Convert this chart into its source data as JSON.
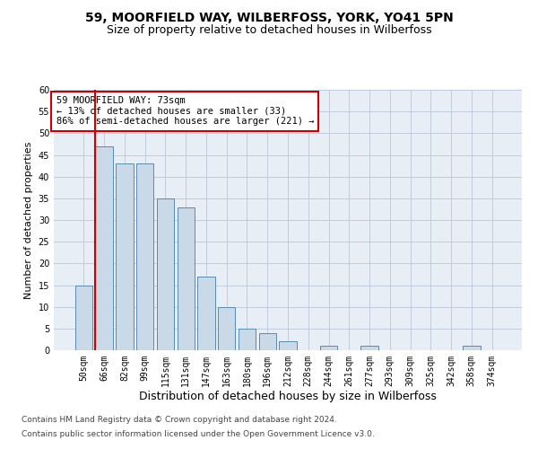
{
  "title1": "59, MOORFIELD WAY, WILBERFOSS, YORK, YO41 5PN",
  "title2": "Size of property relative to detached houses in Wilberfoss",
  "xlabel": "Distribution of detached houses by size in Wilberfoss",
  "ylabel": "Number of detached properties",
  "categories": [
    "50sqm",
    "66sqm",
    "82sqm",
    "99sqm",
    "115sqm",
    "131sqm",
    "147sqm",
    "163sqm",
    "180sqm",
    "196sqm",
    "212sqm",
    "228sqm",
    "244sqm",
    "261sqm",
    "277sqm",
    "293sqm",
    "309sqm",
    "325sqm",
    "342sqm",
    "358sqm",
    "374sqm"
  ],
  "values": [
    15,
    47,
    43,
    43,
    35,
    33,
    17,
    10,
    5,
    4,
    2,
    0,
    1,
    0,
    1,
    0,
    0,
    0,
    0,
    1,
    0
  ],
  "bar_color": "#c9d9e8",
  "bar_edge_color": "#5a8ab0",
  "vline_x": 0.575,
  "vline_color": "#cc0000",
  "annotation_text": "59 MOORFIELD WAY: 73sqm\n← 13% of detached houses are smaller (33)\n86% of semi-detached houses are larger (221) →",
  "annotation_box_color": "#ffffff",
  "annotation_box_edge_color": "#cc0000",
  "ylim": [
    0,
    60
  ],
  "yticks": [
    0,
    5,
    10,
    15,
    20,
    25,
    30,
    35,
    40,
    45,
    50,
    55,
    60
  ],
  "grid_color": "#c0ccdd",
  "background_color": "#e8eef5",
  "footer1": "Contains HM Land Registry data © Crown copyright and database right 2024.",
  "footer2": "Contains public sector information licensed under the Open Government Licence v3.0.",
  "title1_fontsize": 10,
  "title2_fontsize": 9,
  "xlabel_fontsize": 9,
  "ylabel_fontsize": 8,
  "tick_fontsize": 7,
  "footer_fontsize": 6.5
}
